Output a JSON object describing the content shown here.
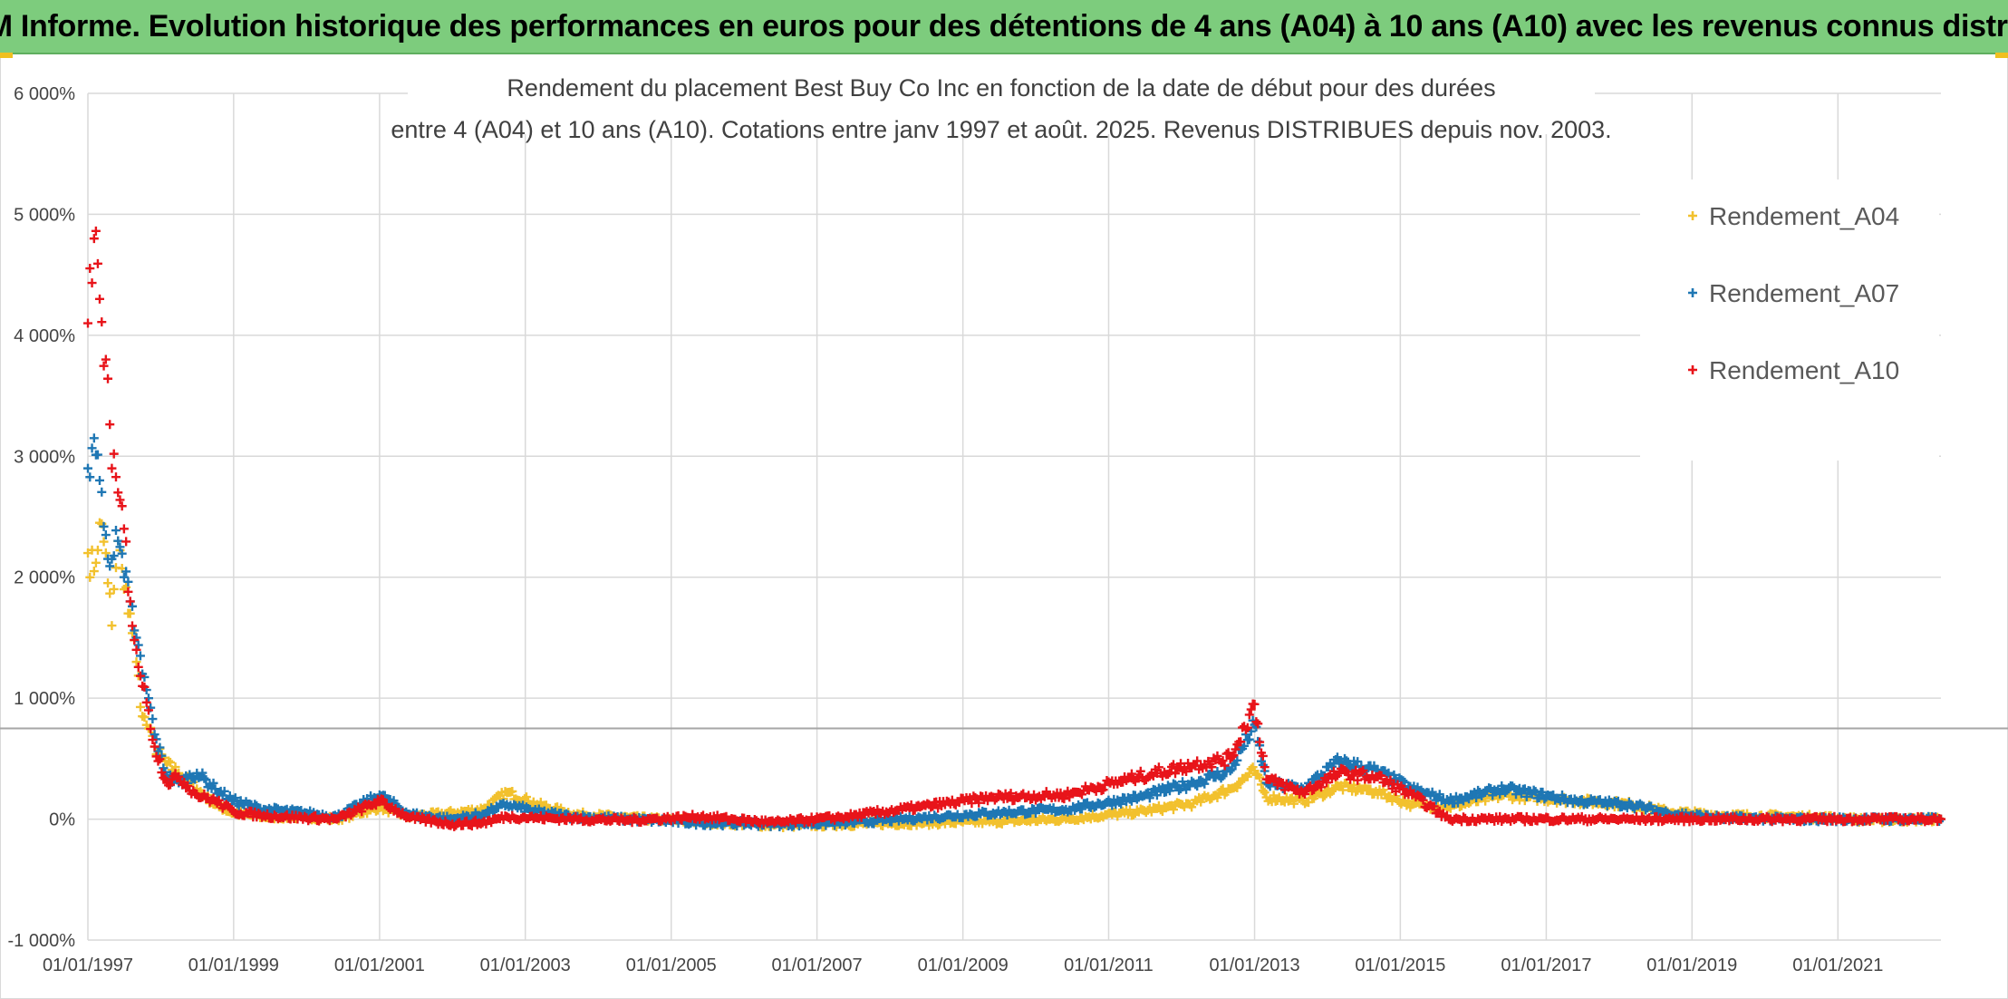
{
  "header": {
    "title": "ADAM Informe. Evolution historique des performances en euros pour des détentions de 4 ans (A04) à 10 ans (A10) avec les revenus connus distribués"
  },
  "chart_data": {
    "type": "scatter",
    "title_lines": [
      "Rendement du placement Best Buy Co Inc en fonction de la date de début pour des durées",
      "entre 4 (A04) et 10 ans (A10). Cotations entre janv 1997 et août. 2025. Revenus DISTRIBUES depuis nov. 2003."
    ],
    "xlabel": "",
    "ylabel": "",
    "x_range": [
      "1997-01-01",
      "2022-06-01"
    ],
    "x_ticks": [
      "01/01/1997",
      "01/01/1999",
      "01/01/2001",
      "01/01/2003",
      "01/01/2005",
      "01/01/2007",
      "01/01/2009",
      "01/01/2011",
      "01/01/2013",
      "01/01/2015",
      "01/01/2017",
      "01/01/2019",
      "01/01/2021"
    ],
    "ylim": [
      -1000,
      6000
    ],
    "y_ticks": [
      -1000,
      0,
      1000,
      2000,
      3000,
      4000,
      5000,
      6000
    ],
    "y_tick_labels": [
      "-1 000%",
      "0%",
      "1 000%",
      "2 000%",
      "3 000%",
      "4 000%",
      "5 000%",
      "6 000%"
    ],
    "reference_line": 750,
    "grid": true,
    "legend_position": "right",
    "marker": "+",
    "series": [
      {
        "name": "Rendement_A04",
        "color": "#f2c12e",
        "points": [
          [
            "1997-01-01",
            2200
          ],
          [
            "1997-02-01",
            2050
          ],
          [
            "1997-03-01",
            2450
          ],
          [
            "1997-04-01",
            2200
          ],
          [
            "1997-05-01",
            1600
          ],
          [
            "1997-06-01",
            2300
          ],
          [
            "1997-07-01",
            1900
          ],
          [
            "1997-08-01",
            1700
          ],
          [
            "1997-09-01",
            1300
          ],
          [
            "1997-10-01",
            850
          ],
          [
            "1997-11-01",
            750
          ],
          [
            "1997-12-01",
            600
          ],
          [
            "1998-02-01",
            450
          ],
          [
            "1998-04-01",
            380
          ],
          [
            "1998-07-01",
            250
          ],
          [
            "1998-10-01",
            120
          ],
          [
            "1999-01-01",
            50
          ],
          [
            "1999-06-01",
            20
          ],
          [
            "2000-01-01",
            20
          ],
          [
            "2000-06-01",
            0
          ],
          [
            "2001-01-01",
            100
          ],
          [
            "2001-06-01",
            20
          ],
          [
            "2002-01-01",
            50
          ],
          [
            "2002-06-01",
            80
          ],
          [
            "2002-10-01",
            220
          ],
          [
            "2003-03-01",
            120
          ],
          [
            "2003-09-01",
            40
          ],
          [
            "2004-06-01",
            10
          ],
          [
            "2005-06-01",
            -20
          ],
          [
            "2006-06-01",
            -50
          ],
          [
            "2007-06-01",
            -40
          ],
          [
            "2008-06-01",
            -30
          ],
          [
            "2009-06-01",
            -20
          ],
          [
            "2010-06-01",
            0
          ],
          [
            "2011-06-01",
            60
          ],
          [
            "2012-03-01",
            130
          ],
          [
            "2012-09-01",
            250
          ],
          [
            "2013-01-01",
            400
          ],
          [
            "2013-03-01",
            180
          ],
          [
            "2013-09-01",
            150
          ],
          [
            "2014-03-01",
            270
          ],
          [
            "2014-09-01",
            230
          ],
          [
            "2015-03-01",
            120
          ],
          [
            "2015-09-01",
            100
          ],
          [
            "2016-06-01",
            200
          ],
          [
            "2017-06-01",
            150
          ],
          [
            "2018-03-01",
            120
          ],
          [
            "2018-09-01",
            60
          ],
          [
            "2019-06-01",
            30
          ],
          [
            "2020-06-01",
            20
          ],
          [
            "2021-01-01",
            10
          ],
          [
            "2021-06-01",
            -10
          ],
          [
            "2022-06-01",
            0
          ]
        ]
      },
      {
        "name": "Rendement_A07",
        "color": "#1f77b4",
        "points": [
          [
            "1997-01-01",
            2900
          ],
          [
            "1997-02-01",
            3150
          ],
          [
            "1997-03-01",
            2800
          ],
          [
            "1997-04-01",
            2350
          ],
          [
            "1997-05-01",
            2150
          ],
          [
            "1997-06-01",
            2300
          ],
          [
            "1997-07-01",
            2000
          ],
          [
            "1997-08-01",
            1800
          ],
          [
            "1997-09-01",
            1500
          ],
          [
            "1997-10-01",
            1200
          ],
          [
            "1997-11-01",
            1000
          ],
          [
            "1997-12-01",
            700
          ],
          [
            "1998-02-01",
            350
          ],
          [
            "1998-04-01",
            300
          ],
          [
            "1998-07-01",
            380
          ],
          [
            "1998-10-01",
            250
          ],
          [
            "1999-01-01",
            150
          ],
          [
            "1999-06-01",
            80
          ],
          [
            "2000-01-01",
            50
          ],
          [
            "2000-06-01",
            20
          ],
          [
            "2001-01-01",
            200
          ],
          [
            "2001-06-01",
            40
          ],
          [
            "2002-01-01",
            0
          ],
          [
            "2002-06-01",
            40
          ],
          [
            "2002-10-01",
            120
          ],
          [
            "2003-03-01",
            60
          ],
          [
            "2003-09-01",
            20
          ],
          [
            "2004-06-01",
            0
          ],
          [
            "2005-06-01",
            -30
          ],
          [
            "2006-06-01",
            -40
          ],
          [
            "2007-06-01",
            -30
          ],
          [
            "2008-06-01",
            10
          ],
          [
            "2009-06-01",
            50
          ],
          [
            "2010-06-01",
            80
          ],
          [
            "2011-06-01",
            180
          ],
          [
            "2012-03-01",
            300
          ],
          [
            "2012-09-01",
            400
          ],
          [
            "2013-01-01",
            780
          ],
          [
            "2013-03-01",
            300
          ],
          [
            "2013-09-01",
            250
          ],
          [
            "2014-03-01",
            480
          ],
          [
            "2014-09-01",
            400
          ],
          [
            "2015-03-01",
            250
          ],
          [
            "2015-09-01",
            150
          ],
          [
            "2016-06-01",
            250
          ],
          [
            "2017-06-01",
            150
          ],
          [
            "2018-03-01",
            120
          ],
          [
            "2018-09-01",
            50
          ],
          [
            "2019-06-01",
            10
          ],
          [
            "2020-06-01",
            0
          ],
          [
            "2021-01-01",
            0
          ],
          [
            "2021-06-01",
            0
          ],
          [
            "2022-06-01",
            0
          ]
        ]
      },
      {
        "name": "Rendement_A10",
        "color": "#e8141a",
        "points": [
          [
            "1997-01-01",
            4100
          ],
          [
            "1997-02-01",
            4800
          ],
          [
            "1997-03-01",
            4300
          ],
          [
            "1997-04-01",
            3800
          ],
          [
            "1997-05-01",
            2900
          ],
          [
            "1997-06-01",
            2700
          ],
          [
            "1997-07-01",
            2400
          ],
          [
            "1997-08-01",
            1800
          ],
          [
            "1997-09-01",
            1400
          ],
          [
            "1997-10-01",
            1100
          ],
          [
            "1997-11-01",
            900
          ],
          [
            "1997-12-01",
            600
          ],
          [
            "1998-02-01",
            300
          ],
          [
            "1998-04-01",
            350
          ],
          [
            "1998-07-01",
            200
          ],
          [
            "1998-10-01",
            150
          ],
          [
            "1999-01-01",
            60
          ],
          [
            "1999-06-01",
            30
          ],
          [
            "2000-01-01",
            10
          ],
          [
            "2000-06-01",
            0
          ],
          [
            "2001-01-01",
            150
          ],
          [
            "2001-06-01",
            10
          ],
          [
            "2002-01-01",
            -40
          ],
          [
            "2002-06-01",
            -30
          ],
          [
            "2002-10-01",
            20
          ],
          [
            "2003-03-01",
            10
          ],
          [
            "2003-09-01",
            0
          ],
          [
            "2004-06-01",
            -10
          ],
          [
            "2005-06-01",
            20
          ],
          [
            "2006-06-01",
            -30
          ],
          [
            "2007-06-01",
            20
          ],
          [
            "2008-06-01",
            100
          ],
          [
            "2009-06-01",
            180
          ],
          [
            "2010-06-01",
            200
          ],
          [
            "2011-06-01",
            350
          ],
          [
            "2012-03-01",
            450
          ],
          [
            "2012-09-01",
            500
          ],
          [
            "2013-01-01",
            950
          ],
          [
            "2013-03-01",
            330
          ],
          [
            "2013-09-01",
            220
          ],
          [
            "2014-03-01",
            380
          ],
          [
            "2014-09-01",
            350
          ],
          [
            "2015-03-01",
            200
          ],
          [
            "2015-09-01",
            0
          ],
          [
            "2016-06-01",
            0
          ],
          [
            "2017-06-01",
            0
          ],
          [
            "2018-03-01",
            0
          ],
          [
            "2018-09-01",
            0
          ],
          [
            "2019-06-01",
            0
          ],
          [
            "2020-06-01",
            0
          ],
          [
            "2021-01-01",
            0
          ],
          [
            "2021-06-01",
            0
          ],
          [
            "2022-06-01",
            0
          ]
        ]
      }
    ]
  }
}
